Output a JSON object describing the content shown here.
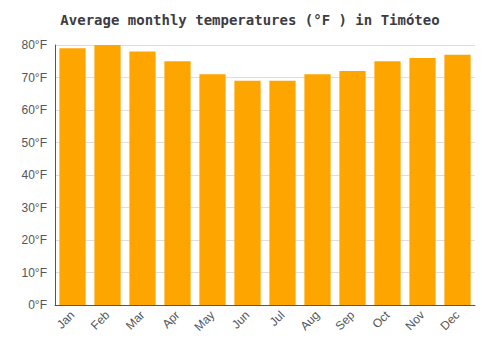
{
  "chart_data": {
    "type": "bar",
    "title": "Average monthly temperatures (°F ) in Timóteo",
    "categories": [
      "Jan",
      "Feb",
      "Mar",
      "Apr",
      "May",
      "Jun",
      "Jul",
      "Aug",
      "Sep",
      "Oct",
      "Nov",
      "Dec"
    ],
    "values": [
      79,
      80,
      78,
      75,
      71,
      69,
      69,
      71,
      72,
      75,
      76,
      77
    ],
    "color": "#FFA500",
    "ylim": [
      0,
      80
    ],
    "yticks": [
      {
        "value": 0,
        "label": "0°F"
      },
      {
        "value": 10,
        "label": "10°F"
      },
      {
        "value": 20,
        "label": "20°F"
      },
      {
        "value": 30,
        "label": "30°F"
      },
      {
        "value": 40,
        "label": "40°F"
      },
      {
        "value": 50,
        "label": "50°F"
      },
      {
        "value": 60,
        "label": "60°F"
      },
      {
        "value": 70,
        "label": "70°F"
      },
      {
        "value": 80,
        "label": "80°F"
      }
    ],
    "grid": true
  }
}
